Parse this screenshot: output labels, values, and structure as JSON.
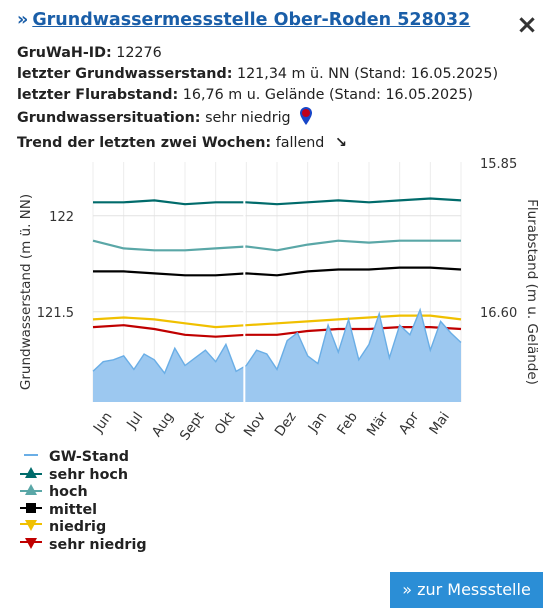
{
  "header": {
    "title": "Grundwassermessstelle Ober-Roden 528032",
    "chevron_icon": "double-chevron-right-icon",
    "close_symbol": "×"
  },
  "info": {
    "id_label": "GruWaH-ID:",
    "id_value": "12276",
    "level_label": "letzter Grundwasserstand:",
    "level_value": "121,34 m ü. NN (Stand: 16.05.2025)",
    "depth_label": "letzter Flurabstand:",
    "depth_value": "16,76 m u. Gelände (Stand: 16.05.2025)",
    "situation_label": "Grundwassersituation:",
    "situation_value": "sehr niedrig",
    "situation_icon": "map-pin-icon",
    "situation_icon_color": "#c0001a",
    "trend_label": "Trend der letzten zwei Wochen:",
    "trend_value": "fallend",
    "trend_arrow": "↘"
  },
  "chart_data": {
    "type": "line",
    "x_tick_labels": [
      "Jun",
      "Jul",
      "Aug",
      "Sept",
      "Okt",
      "Nov",
      "Dez",
      "Jan",
      "Feb",
      "Mär",
      "Apr",
      "Mai"
    ],
    "ylabel": "Grundwasserstand (m ü. NN)",
    "y2label": "Flurabstand (m u. Gelände)",
    "y_ticks": [
      122,
      121.5
    ],
    "y_tick_labels": [
      "122",
      "121.5"
    ],
    "y2_tick_labels": [
      "15.85",
      "16.60"
    ],
    "ylim": [
      121.03,
      122.28
    ],
    "grid": true,
    "series": [
      {
        "name": "sehr hoch",
        "color": "#006b6b",
        "type": "line",
        "values": [
          122.07,
          122.07,
          122.08,
          122.06,
          122.07,
          122.07,
          122.06,
          122.07,
          122.08,
          122.07,
          122.08,
          122.09,
          122.08
        ]
      },
      {
        "name": "hoch",
        "color": "#5aa7a7",
        "type": "line",
        "values": [
          121.87,
          121.83,
          121.82,
          121.82,
          121.83,
          121.84,
          121.82,
          121.85,
          121.87,
          121.86,
          121.87,
          121.87,
          121.87
        ]
      },
      {
        "name": "mittel",
        "color": "#000000",
        "type": "line",
        "values": [
          121.71,
          121.71,
          121.7,
          121.69,
          121.69,
          121.7,
          121.69,
          121.71,
          121.72,
          121.72,
          121.73,
          121.73,
          121.72
        ]
      },
      {
        "name": "niedrig",
        "color": "#f0c000",
        "type": "line",
        "values": [
          121.46,
          121.47,
          121.46,
          121.44,
          121.42,
          121.43,
          121.44,
          121.45,
          121.46,
          121.47,
          121.48,
          121.48,
          121.46
        ]
      },
      {
        "name": "sehr niedrig",
        "color": "#c00000",
        "type": "line",
        "values": [
          121.42,
          121.43,
          121.41,
          121.38,
          121.37,
          121.38,
          121.38,
          121.4,
          121.41,
          121.41,
          121.42,
          121.42,
          121.41
        ]
      },
      {
        "name": "GW-Stand",
        "color": "#6aaee6",
        "type": "area",
        "values": [
          121.19,
          121.24,
          121.25,
          121.27,
          121.2,
          121.28,
          121.25,
          121.18,
          121.31,
          121.22,
          121.26,
          121.3,
          121.24,
          121.33,
          121.19,
          121.22,
          121.3,
          121.28,
          121.2,
          121.35,
          121.39,
          121.27,
          121.23,
          121.43,
          121.29,
          121.46,
          121.25,
          121.33,
          121.49,
          121.26,
          121.43,
          121.38,
          121.51,
          121.3,
          121.45,
          121.39,
          121.34
        ]
      }
    ]
  },
  "legend": [
    {
      "label": "GW-Stand",
      "color": "#6aaee6",
      "marker": "dash"
    },
    {
      "label": "sehr hoch",
      "color": "#006b6b",
      "marker": "triangle-up"
    },
    {
      "label": "hoch",
      "color": "#5aa7a7",
      "marker": "triangle-up"
    },
    {
      "label": "mittel",
      "color": "#000000",
      "marker": "square"
    },
    {
      "label": "niedrig",
      "color": "#f0c000",
      "marker": "triangle-down"
    },
    {
      "label": "sehr niedrig",
      "color": "#c00000",
      "marker": "triangle-down"
    }
  ],
  "footer": {
    "button_label": "zur Messstelle",
    "button_icon": "chevron-right-icon"
  }
}
